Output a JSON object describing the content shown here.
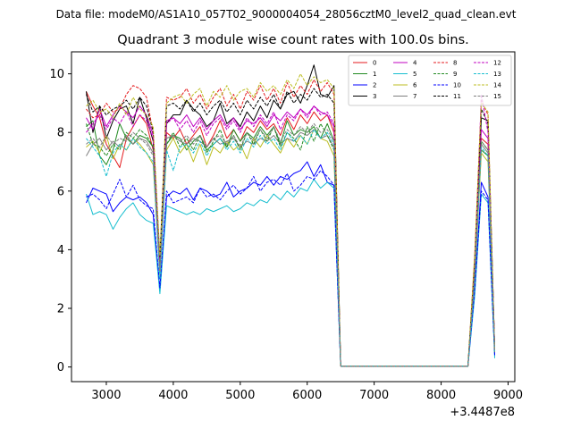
{
  "chart_data": {
    "type": "line",
    "suptitle": "Data file: modeM0/AS1A10_057T02_9000004054_28056cztM0_level2_quad_clean.evt",
    "title": "Quadrant 3 module wise count rates with 100.0s bins.",
    "xlabel": "",
    "ylabel": "",
    "x_offset_label": "+3.4487e8",
    "xlim": [
      2480,
      9100
    ],
    "ylim": [
      -0.5,
      10.75
    ],
    "xticks": [
      3000,
      4000,
      5000,
      6000,
      7000,
      8000,
      9000
    ],
    "xtick_labels": [
      "3000",
      "4000",
      "5000",
      "6000",
      "7000",
      "8000",
      "9000"
    ],
    "yticks": [
      0,
      2,
      4,
      6,
      8,
      10
    ],
    "ytick_labels": [
      "0",
      "2",
      "4",
      "6",
      "8",
      "10"
    ],
    "grid": false,
    "legend_position": "top-right",
    "legend_columns": 4,
    "x": [
      2700,
      2800,
      2900,
      3000,
      3100,
      3200,
      3300,
      3400,
      3500,
      3600,
      3700,
      3800,
      3900,
      4000,
      4100,
      4200,
      4300,
      4400,
      4500,
      4600,
      4700,
      4800,
      4900,
      5000,
      5100,
      5200,
      5300,
      5400,
      5500,
      5600,
      5700,
      5800,
      5900,
      6000,
      6100,
      6200,
      6300,
      6400,
      6500,
      6600,
      6700,
      6800,
      6900,
      7000,
      7100,
      7200,
      7300,
      7400,
      7500,
      7600,
      7700,
      7800,
      7900,
      8000,
      8100,
      8200,
      8300,
      8400,
      8500,
      8600,
      8700,
      8800
    ],
    "series": [
      {
        "name": "0",
        "color": "#e41a1c",
        "dashed": false,
        "values": [
          9.4,
          8.9,
          8.5,
          7.6,
          7.2,
          6.8,
          7.8,
          8.2,
          8.6,
          8.3,
          7.4,
          3.2,
          8.0,
          7.8,
          8.1,
          7.6,
          7.9,
          8.2,
          7.5,
          7.9,
          8.4,
          7.8,
          8.1,
          7.7,
          8.2,
          8.0,
          8.4,
          8.1,
          8.3,
          7.9,
          8.5,
          8.1,
          8.6,
          8.3,
          8.7,
          8.4,
          8.6,
          8.0,
          0.03,
          0.03,
          0.03,
          0.03,
          0.03,
          0.03,
          0.03,
          0.03,
          0.03,
          0.03,
          0.03,
          0.03,
          0.03,
          0.03,
          0.03,
          0.03,
          0.03,
          0.03,
          0.03,
          0.03,
          3.0,
          7.8,
          7.6,
          0.6
        ]
      },
      {
        "name": "1",
        "color": "#228b22",
        "dashed": false,
        "values": [
          8.2,
          8.4,
          7.2,
          6.9,
          7.4,
          8.3,
          7.8,
          7.6,
          7.9,
          7.8,
          7.5,
          3.8,
          7.6,
          7.9,
          7.8,
          7.4,
          7.7,
          7.9,
          7.4,
          7.6,
          7.8,
          7.5,
          8.1,
          7.7,
          8.0,
          7.8,
          8.2,
          7.9,
          8.2,
          7.6,
          8.4,
          7.9,
          8.1,
          8.0,
          8.2,
          7.8,
          8.3,
          7.7,
          0.03,
          0.03,
          0.03,
          0.03,
          0.03,
          0.03,
          0.03,
          0.03,
          0.03,
          0.03,
          0.03,
          0.03,
          0.03,
          0.03,
          0.03,
          0.03,
          0.03,
          0.03,
          0.03,
          0.03,
          3.0,
          7.4,
          7.2,
          0.5
        ]
      },
      {
        "name": "2",
        "color": "#0000ff",
        "dashed": false,
        "values": [
          5.6,
          6.1,
          6.0,
          5.9,
          5.3,
          5.6,
          5.8,
          5.7,
          5.8,
          5.6,
          5.2,
          2.6,
          5.8,
          6.0,
          5.9,
          6.1,
          5.7,
          6.1,
          6.0,
          5.8,
          5.9,
          6.3,
          5.8,
          6.0,
          6.1,
          6.3,
          6.2,
          6.5,
          6.2,
          6.5,
          6.4,
          6.6,
          6.7,
          7.0,
          6.5,
          6.9,
          6.3,
          6.2,
          0.03,
          0.03,
          0.03,
          0.03,
          0.03,
          0.03,
          0.03,
          0.03,
          0.03,
          0.03,
          0.03,
          0.03,
          0.03,
          0.03,
          0.03,
          0.03,
          0.03,
          0.03,
          0.03,
          0.03,
          2.5,
          6.3,
          5.8,
          0.4
        ]
      },
      {
        "name": "3",
        "color": "#000000",
        "dashed": false,
        "values": [
          9.4,
          8.0,
          8.9,
          7.8,
          8.4,
          8.8,
          8.9,
          8.3,
          9.2,
          8.5,
          7.7,
          3.3,
          8.3,
          8.6,
          8.6,
          9.1,
          8.8,
          8.6,
          8.2,
          8.4,
          9.0,
          8.3,
          8.5,
          8.2,
          8.7,
          8.4,
          8.9,
          8.5,
          9.1,
          8.8,
          9.3,
          9.4,
          9.0,
          9.6,
          10.3,
          9.3,
          9.2,
          9.6,
          0.03,
          0.03,
          0.03,
          0.03,
          0.03,
          0.03,
          0.03,
          0.03,
          0.03,
          0.03,
          0.03,
          0.03,
          0.03,
          0.03,
          0.03,
          0.03,
          0.03,
          0.03,
          0.03,
          0.03,
          3.6,
          8.5,
          8.4,
          0.6
        ]
      },
      {
        "name": "4",
        "color": "#c000c0",
        "dashed": false,
        "values": [
          8.5,
          8.1,
          8.8,
          8.2,
          8.6,
          8.9,
          8.7,
          8.5,
          8.9,
          8.6,
          7.9,
          3.5,
          8.4,
          8.5,
          8.3,
          8.6,
          8.2,
          8.5,
          8.1,
          8.4,
          8.6,
          8.2,
          8.5,
          8.1,
          8.4,
          8.3,
          8.5,
          8.2,
          8.6,
          8.4,
          8.7,
          8.5,
          8.8,
          8.6,
          8.9,
          8.7,
          8.6,
          8.2,
          0.03,
          0.03,
          0.03,
          0.03,
          0.03,
          0.03,
          0.03,
          0.03,
          0.03,
          0.03,
          0.03,
          0.03,
          0.03,
          0.03,
          0.03,
          0.03,
          0.03,
          0.03,
          0.03,
          0.03,
          3.2,
          8.1,
          7.8,
          0.6
        ]
      },
      {
        "name": "5",
        "color": "#17becf",
        "dashed": false,
        "values": [
          5.9,
          5.2,
          5.3,
          5.2,
          4.7,
          5.1,
          5.4,
          5.6,
          5.2,
          5.0,
          4.9,
          2.5,
          5.5,
          5.4,
          5.3,
          5.2,
          5.3,
          5.2,
          5.4,
          5.3,
          5.4,
          5.5,
          5.3,
          5.4,
          5.6,
          5.5,
          5.7,
          5.6,
          5.9,
          5.7,
          6.0,
          5.8,
          6.1,
          6.0,
          6.4,
          6.1,
          6.3,
          6.1,
          0.03,
          0.03,
          0.03,
          0.03,
          0.03,
          0.03,
          0.03,
          0.03,
          0.03,
          0.03,
          0.03,
          0.03,
          0.03,
          0.03,
          0.03,
          0.03,
          0.03,
          0.03,
          0.03,
          0.03,
          2.4,
          5.9,
          5.6,
          0.3
        ]
      },
      {
        "name": "6",
        "color": "#bcbd22",
        "dashed": false,
        "values": [
          7.5,
          7.7,
          7.3,
          7.9,
          7.1,
          7.6,
          7.4,
          7.8,
          7.6,
          7.3,
          6.9,
          3.1,
          7.4,
          7.8,
          7.3,
          7.6,
          7.0,
          7.6,
          6.9,
          7.5,
          7.3,
          7.7,
          7.4,
          7.6,
          7.1,
          7.8,
          7.5,
          7.9,
          7.6,
          7.3,
          7.8,
          7.5,
          7.9,
          7.6,
          8.1,
          7.8,
          7.7,
          7.2,
          0.03,
          0.03,
          0.03,
          0.03,
          0.03,
          0.03,
          0.03,
          0.03,
          0.03,
          0.03,
          0.03,
          0.03,
          0.03,
          0.03,
          0.03,
          0.03,
          0.03,
          0.03,
          0.03,
          0.03,
          3.0,
          7.3,
          7.0,
          0.5
        ]
      },
      {
        "name": "7",
        "color": "#7f7f7f",
        "dashed": false,
        "values": [
          7.2,
          7.6,
          7.8,
          7.4,
          7.7,
          7.5,
          7.9,
          7.6,
          7.8,
          7.7,
          7.3,
          3.4,
          7.8,
          7.9,
          7.7,
          7.6,
          7.8,
          7.7,
          7.5,
          7.8,
          7.6,
          7.7,
          7.8,
          7.5,
          7.7,
          7.6,
          7.8,
          7.7,
          7.9,
          7.6,
          7.8,
          7.7,
          8.0,
          7.9,
          8.1,
          7.8,
          7.9,
          7.5,
          0.03,
          0.03,
          0.03,
          0.03,
          0.03,
          0.03,
          0.03,
          0.03,
          0.03,
          0.03,
          0.03,
          0.03,
          0.03,
          0.03,
          0.03,
          0.03,
          0.03,
          0.03,
          0.03,
          0.03,
          3.1,
          7.6,
          7.3,
          0.5
        ]
      },
      {
        "name": "8",
        "color": "#e41a1c",
        "dashed": true,
        "values": [
          8.8,
          8.5,
          8.6,
          9.0,
          8.7,
          8.8,
          9.3,
          9.6,
          9.5,
          9.2,
          8.0,
          3.6,
          9.2,
          9.1,
          9.2,
          9.5,
          9.0,
          9.3,
          8.8,
          9.2,
          9.5,
          8.9,
          9.3,
          8.8,
          9.4,
          9.1,
          9.6,
          9.1,
          9.5,
          9.0,
          9.7,
          9.2,
          9.6,
          9.3,
          9.8,
          9.4,
          9.7,
          9.3,
          0.03,
          0.03,
          0.03,
          0.03,
          0.03,
          0.03,
          0.03,
          0.03,
          0.03,
          0.03,
          0.03,
          0.03,
          0.03,
          0.03,
          0.03,
          0.03,
          0.03,
          0.03,
          0.03,
          0.03,
          3.7,
          9.1,
          8.6,
          0.6
        ]
      },
      {
        "name": "9",
        "color": "#228b22",
        "dashed": true,
        "values": [
          8.3,
          7.6,
          7.5,
          7.2,
          7.6,
          7.4,
          8.0,
          7.8,
          8.1,
          7.9,
          7.5,
          3.5,
          7.6,
          8.0,
          7.5,
          7.8,
          7.4,
          7.9,
          7.3,
          7.7,
          8.1,
          7.5,
          7.9,
          7.4,
          8.0,
          7.6,
          8.1,
          7.7,
          8.2,
          7.5,
          8.0,
          7.8,
          7.4,
          8.2,
          7.7,
          8.3,
          7.9,
          7.4,
          0.03,
          0.03,
          0.03,
          0.03,
          0.03,
          0.03,
          0.03,
          0.03,
          0.03,
          0.03,
          0.03,
          0.03,
          0.03,
          0.03,
          0.03,
          0.03,
          0.03,
          0.03,
          0.03,
          0.03,
          3.1,
          7.7,
          7.4,
          0.5
        ]
      },
      {
        "name": "10",
        "color": "#0000ff",
        "dashed": true,
        "values": [
          5.8,
          5.9,
          5.7,
          5.4,
          5.9,
          6.4,
          5.8,
          6.2,
          5.7,
          5.5,
          5.4,
          2.7,
          6.0,
          5.6,
          5.7,
          5.8,
          5.6,
          6.1,
          5.8,
          5.9,
          5.7,
          6.0,
          6.2,
          5.9,
          6.1,
          6.5,
          6.0,
          6.3,
          6.4,
          6.2,
          6.6,
          6.0,
          6.2,
          6.5,
          6.4,
          6.7,
          6.5,
          6.2,
          0.03,
          0.03,
          0.03,
          0.03,
          0.03,
          0.03,
          0.03,
          0.03,
          0.03,
          0.03,
          0.03,
          0.03,
          0.03,
          0.03,
          0.03,
          0.03,
          0.03,
          0.03,
          0.03,
          0.03,
          2.6,
          6.0,
          5.7,
          0.4
        ]
      },
      {
        "name": "11",
        "color": "#000000",
        "dashed": true,
        "values": [
          9.3,
          8.7,
          8.9,
          8.6,
          8.8,
          8.9,
          9.1,
          8.8,
          9.2,
          8.9,
          8.0,
          3.7,
          8.9,
          9.0,
          8.8,
          9.1,
          8.7,
          9.0,
          8.6,
          8.9,
          9.1,
          8.7,
          9.0,
          8.6,
          9.1,
          8.8,
          9.2,
          8.9,
          9.3,
          8.8,
          9.4,
          9.0,
          9.3,
          9.1,
          9.5,
          9.2,
          9.3,
          9.0,
          0.03,
          0.03,
          0.03,
          0.03,
          0.03,
          0.03,
          0.03,
          0.03,
          0.03,
          0.03,
          0.03,
          0.03,
          0.03,
          0.03,
          0.03,
          0.03,
          0.03,
          0.03,
          0.03,
          0.03,
          3.5,
          8.8,
          8.3,
          0.6
        ]
      },
      {
        "name": "12",
        "color": "#c000c0",
        "dashed": true,
        "values": [
          8.0,
          8.3,
          8.6,
          8.1,
          8.5,
          8.3,
          8.7,
          8.2,
          8.6,
          8.4,
          7.8,
          3.4,
          8.3,
          8.5,
          8.1,
          8.4,
          8.0,
          8.4,
          7.9,
          8.3,
          8.5,
          8.1,
          8.4,
          8.0,
          8.5,
          8.2,
          8.6,
          8.3,
          8.7,
          8.1,
          8.6,
          8.4,
          8.8,
          8.5,
          8.9,
          8.6,
          8.7,
          8.3,
          0.03,
          0.03,
          0.03,
          0.03,
          0.03,
          0.03,
          0.03,
          0.03,
          0.03,
          0.03,
          0.03,
          0.03,
          0.03,
          0.03,
          0.03,
          0.03,
          0.03,
          0.03,
          0.03,
          0.03,
          3.2,
          9.3,
          8.0,
          0.6
        ]
      },
      {
        "name": "13",
        "color": "#17becf",
        "dashed": true,
        "values": [
          7.8,
          7.5,
          7.2,
          6.5,
          7.3,
          7.6,
          7.4,
          7.8,
          7.5,
          7.3,
          7.0,
          3.0,
          7.4,
          6.7,
          7.5,
          7.6,
          7.3,
          7.7,
          7.2,
          7.6,
          7.8,
          7.4,
          7.7,
          7.3,
          7.8,
          7.5,
          7.9,
          7.6,
          7.8,
          7.4,
          8.0,
          7.7,
          7.9,
          7.6,
          8.1,
          7.8,
          8.0,
          7.6,
          0.03,
          0.03,
          0.03,
          0.03,
          0.03,
          0.03,
          0.03,
          0.03,
          0.03,
          0.03,
          0.03,
          0.03,
          0.03,
          0.03,
          0.03,
          0.03,
          0.03,
          0.03,
          0.03,
          0.03,
          3.0,
          7.5,
          7.2,
          0.5
        ]
      },
      {
        "name": "14",
        "color": "#bcbd22",
        "dashed": true,
        "values": [
          8.9,
          9.1,
          8.7,
          8.8,
          8.5,
          9.0,
          8.6,
          9.2,
          8.8,
          8.6,
          8.2,
          3.8,
          9.0,
          9.2,
          9.3,
          9.0,
          9.3,
          9.5,
          8.9,
          9.4,
          9.2,
          9.6,
          9.1,
          9.4,
          9.5,
          9.2,
          9.7,
          9.4,
          9.6,
          9.3,
          9.8,
          9.5,
          10.0,
          9.6,
          9.9,
          9.7,
          9.8,
          9.5,
          0.03,
          0.03,
          0.03,
          0.03,
          0.03,
          0.03,
          0.03,
          0.03,
          0.03,
          0.03,
          0.03,
          0.03,
          0.03,
          0.03,
          0.03,
          0.03,
          0.03,
          0.03,
          0.03,
          0.03,
          3.8,
          9.0,
          8.7,
          0.6
        ]
      },
      {
        "name": "15",
        "color": "#7f7f7f",
        "dashed": true,
        "values": [
          7.6,
          7.8,
          7.5,
          7.9,
          7.6,
          7.8,
          7.7,
          8.0,
          7.8,
          7.6,
          7.2,
          3.3,
          7.8,
          7.9,
          7.7,
          7.9,
          7.6,
          7.9,
          7.5,
          7.8,
          7.9,
          7.6,
          7.9,
          7.5,
          8.0,
          7.7,
          8.1,
          7.8,
          8.2,
          7.7,
          8.1,
          7.9,
          8.2,
          8.0,
          8.3,
          8.0,
          8.1,
          7.7,
          0.03,
          0.03,
          0.03,
          0.03,
          0.03,
          0.03,
          0.03,
          0.03,
          0.03,
          0.03,
          0.03,
          0.03,
          0.03,
          0.03,
          0.03,
          0.03,
          0.03,
          0.03,
          0.03,
          0.03,
          3.1,
          7.7,
          7.4,
          0.5
        ]
      }
    ]
  }
}
